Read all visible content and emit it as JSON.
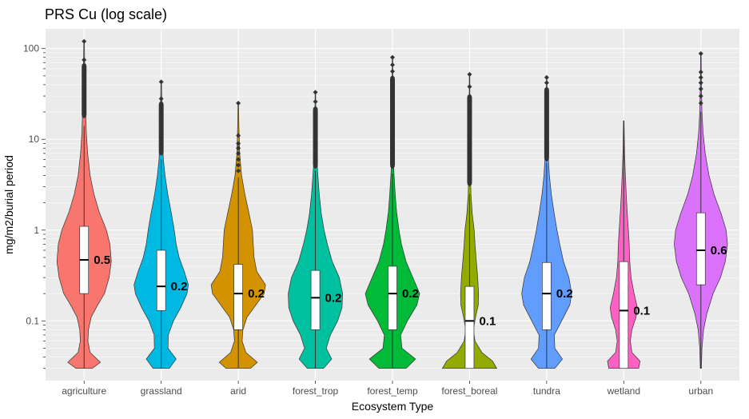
{
  "chart_data": {
    "type": "violin",
    "title": "PRS Cu (log scale)",
    "xlabel": "Ecosystem Type",
    "ylabel": "mg/m2/burial period",
    "y_scale": "log10",
    "ylim": [
      0.022,
      165
    ],
    "y_ticks": [
      0.1,
      1,
      10,
      100
    ],
    "y_tick_labels": [
      "0.1",
      "1",
      "10",
      "100"
    ],
    "grid": true,
    "legend": "none",
    "categories": [
      "agriculture",
      "grassland",
      "arid",
      "forest_trop",
      "forest_temp",
      "forest_boreal",
      "tundra",
      "wetland",
      "urban"
    ],
    "series": [
      {
        "category": "agriculture",
        "color": "#F8766D",
        "min": 0.03,
        "q1": 0.2,
        "median": 0.47,
        "q3": 1.1,
        "whisker_high": 14,
        "max": 120,
        "median_label": "0.5",
        "density": [
          [
            0.03,
            0.3
          ],
          [
            0.035,
            0.6
          ],
          [
            0.045,
            0.22
          ],
          [
            0.06,
            0.14
          ],
          [
            0.08,
            0.16
          ],
          [
            0.11,
            0.26
          ],
          [
            0.15,
            0.5
          ],
          [
            0.2,
            0.75
          ],
          [
            0.3,
            0.92
          ],
          [
            0.45,
            1.0
          ],
          [
            0.7,
            0.95
          ],
          [
            1.0,
            0.82
          ],
          [
            1.6,
            0.55
          ],
          [
            2.5,
            0.36
          ],
          [
            4,
            0.22
          ],
          [
            7,
            0.13
          ],
          [
            12,
            0.08
          ],
          [
            25,
            0.05
          ],
          [
            50,
            0.03
          ],
          [
            120,
            0.01
          ]
        ],
        "outliers": [
          18,
          21,
          24,
          28,
          33,
          38,
          44,
          50,
          58,
          66,
          75,
          120
        ]
      },
      {
        "category": "grassland",
        "color": "#00B9E3",
        "min": 0.03,
        "q1": 0.13,
        "median": 0.24,
        "q3": 0.6,
        "whisker_high": 6,
        "max": 43,
        "median_label": "0.2",
        "density": [
          [
            0.03,
            0.3
          ],
          [
            0.038,
            0.55
          ],
          [
            0.05,
            0.25
          ],
          [
            0.07,
            0.26
          ],
          [
            0.1,
            0.45
          ],
          [
            0.14,
            0.72
          ],
          [
            0.2,
            0.95
          ],
          [
            0.25,
            1.0
          ],
          [
            0.35,
            0.85
          ],
          [
            0.5,
            0.66
          ],
          [
            0.7,
            0.55
          ],
          [
            1.0,
            0.48
          ],
          [
            1.5,
            0.38
          ],
          [
            2.5,
            0.24
          ],
          [
            4,
            0.14
          ],
          [
            6,
            0.08
          ],
          [
            10,
            0.05
          ],
          [
            20,
            0.03
          ],
          [
            43,
            0.01
          ]
        ],
        "outliers": [
          7,
          8,
          9,
          10.5,
          12,
          14,
          16,
          18,
          21,
          25,
          28,
          43
        ]
      },
      {
        "category": "arid",
        "color": "#D39200",
        "min": 0.03,
        "q1": 0.08,
        "median": 0.2,
        "q3": 0.42,
        "whisker_high": 3.8,
        "max": 25,
        "median_label": "0.2",
        "density": [
          [
            0.03,
            0.45
          ],
          [
            0.035,
            0.7
          ],
          [
            0.045,
            0.28
          ],
          [
            0.06,
            0.14
          ],
          [
            0.08,
            0.17
          ],
          [
            0.11,
            0.32
          ],
          [
            0.15,
            0.65
          ],
          [
            0.2,
            0.95
          ],
          [
            0.25,
            1.0
          ],
          [
            0.35,
            0.68
          ],
          [
            0.5,
            0.58
          ],
          [
            0.7,
            0.55
          ],
          [
            1.0,
            0.52
          ],
          [
            1.5,
            0.4
          ],
          [
            2.5,
            0.24
          ],
          [
            4,
            0.12
          ],
          [
            7,
            0.05
          ],
          [
            15,
            0.02
          ],
          [
            25,
            0.01
          ]
        ],
        "outliers": [
          4.5,
          5.2,
          6,
          7,
          8,
          9,
          11,
          25
        ]
      },
      {
        "category": "forest_trop",
        "color": "#00C19F",
        "min": 0.03,
        "q1": 0.08,
        "median": 0.18,
        "q3": 0.36,
        "whisker_high": 4.5,
        "max": 33,
        "median_label": "0.2",
        "density": [
          [
            0.03,
            0.3
          ],
          [
            0.038,
            0.6
          ],
          [
            0.05,
            0.4
          ],
          [
            0.07,
            0.55
          ],
          [
            0.1,
            0.82
          ],
          [
            0.14,
            0.98
          ],
          [
            0.2,
            1.0
          ],
          [
            0.3,
            0.88
          ],
          [
            0.45,
            0.62
          ],
          [
            0.7,
            0.44
          ],
          [
            1.0,
            0.32
          ],
          [
            1.5,
            0.22
          ],
          [
            2.5,
            0.14
          ],
          [
            4.5,
            0.08
          ],
          [
            8,
            0.03
          ],
          [
            15,
            0.02
          ],
          [
            33,
            0.01
          ]
        ],
        "outliers": [
          5,
          6,
          7,
          8,
          9,
          10.5,
          12,
          14,
          16,
          19,
          22,
          26,
          33
        ]
      },
      {
        "category": "forest_temp",
        "color": "#00BA38",
        "min": 0.03,
        "q1": 0.08,
        "median": 0.2,
        "q3": 0.4,
        "whisker_high": 4.2,
        "max": 80,
        "median_label": "0.2",
        "density": [
          [
            0.03,
            0.5
          ],
          [
            0.038,
            0.85
          ],
          [
            0.05,
            0.35
          ],
          [
            0.07,
            0.3
          ],
          [
            0.1,
            0.55
          ],
          [
            0.15,
            0.9
          ],
          [
            0.2,
            1.0
          ],
          [
            0.3,
            0.75
          ],
          [
            0.45,
            0.5
          ],
          [
            0.7,
            0.33
          ],
          [
            1.0,
            0.24
          ],
          [
            1.6,
            0.15
          ],
          [
            2.5,
            0.1
          ],
          [
            4.5,
            0.05
          ],
          [
            9,
            0.03
          ],
          [
            20,
            0.02
          ],
          [
            80,
            0.01
          ]
        ],
        "outliers": [
          5,
          6,
          7,
          8,
          10,
          12,
          14,
          17,
          20,
          24,
          28,
          33,
          40,
          48,
          56,
          66,
          80
        ]
      },
      {
        "category": "forest_boreal",
        "color": "#93AA00",
        "min": 0.03,
        "q1": 0.03,
        "median": 0.1,
        "q3": 0.24,
        "whisker_high": 2.5,
        "max": 52,
        "median_label": "0.1",
        "density": [
          [
            0.03,
            1.0
          ],
          [
            0.036,
            0.85
          ],
          [
            0.045,
            0.45
          ],
          [
            0.06,
            0.2
          ],
          [
            0.08,
            0.14
          ],
          [
            0.11,
            0.22
          ],
          [
            0.15,
            0.32
          ],
          [
            0.2,
            0.33
          ],
          [
            0.3,
            0.3
          ],
          [
            0.45,
            0.25
          ],
          [
            0.7,
            0.2
          ],
          [
            1.0,
            0.17
          ],
          [
            1.5,
            0.1
          ],
          [
            2.5,
            0.05
          ],
          [
            5,
            0.03
          ],
          [
            15,
            0.015
          ],
          [
            52,
            0.01
          ]
        ],
        "outliers": [
          3.2,
          4,
          5,
          6,
          7.5,
          9,
          11,
          13,
          16,
          20,
          25,
          30,
          38,
          52
        ]
      },
      {
        "category": "tundra",
        "color": "#619CFF",
        "min": 0.03,
        "q1": 0.08,
        "median": 0.2,
        "q3": 0.44,
        "whisker_high": 5.5,
        "max": 48,
        "median_label": "0.2",
        "density": [
          [
            0.03,
            0.3
          ],
          [
            0.038,
            0.58
          ],
          [
            0.05,
            0.3
          ],
          [
            0.07,
            0.28
          ],
          [
            0.1,
            0.55
          ],
          [
            0.15,
            0.85
          ],
          [
            0.2,
            0.92
          ],
          [
            0.3,
            0.82
          ],
          [
            0.45,
            0.62
          ],
          [
            0.7,
            0.48
          ],
          [
            1.0,
            0.38
          ],
          [
            1.5,
            0.28
          ],
          [
            2.5,
            0.17
          ],
          [
            4,
            0.1
          ],
          [
            7,
            0.05
          ],
          [
            15,
            0.02
          ],
          [
            48,
            0.01
          ]
        ],
        "outliers": [
          6,
          7,
          8,
          9,
          10.5,
          12,
          14,
          16,
          19,
          22,
          26,
          30,
          36,
          42,
          48
        ]
      },
      {
        "category": "wetland",
        "color": "#FF61C3",
        "min": 0.03,
        "q1": 0.03,
        "median": 0.13,
        "q3": 0.45,
        "whisker_high": 16,
        "max": 16,
        "median_label": "0.1",
        "density": [
          [
            0.03,
            0.55
          ],
          [
            0.036,
            0.6
          ],
          [
            0.045,
            0.3
          ],
          [
            0.06,
            0.24
          ],
          [
            0.08,
            0.3
          ],
          [
            0.11,
            0.45
          ],
          [
            0.14,
            0.5
          ],
          [
            0.2,
            0.38
          ],
          [
            0.3,
            0.27
          ],
          [
            0.45,
            0.22
          ],
          [
            0.7,
            0.2
          ],
          [
            1.0,
            0.17
          ],
          [
            1.5,
            0.13
          ],
          [
            2.5,
            0.09
          ],
          [
            4,
            0.06
          ],
          [
            7,
            0.03
          ],
          [
            16,
            0.01
          ]
        ],
        "outliers": []
      },
      {
        "category": "urban",
        "color": "#DB72FB",
        "min": 0.03,
        "q1": 0.25,
        "median": 0.6,
        "q3": 1.55,
        "whisker_high": 20,
        "max": 88,
        "median_label": "0.6",
        "density": [
          [
            0.03,
            0.02
          ],
          [
            0.05,
            0.04
          ],
          [
            0.08,
            0.1
          ],
          [
            0.12,
            0.22
          ],
          [
            0.2,
            0.45
          ],
          [
            0.3,
            0.72
          ],
          [
            0.45,
            0.9
          ],
          [
            0.7,
            0.98
          ],
          [
            1.0,
            0.93
          ],
          [
            1.5,
            0.75
          ],
          [
            2.5,
            0.48
          ],
          [
            4,
            0.3
          ],
          [
            7,
            0.16
          ],
          [
            12,
            0.08
          ],
          [
            20,
            0.04
          ],
          [
            40,
            0.02
          ],
          [
            88,
            0.01
          ]
        ],
        "outliers": [
          25,
          30,
          36,
          42,
          48,
          55,
          88
        ]
      }
    ]
  }
}
